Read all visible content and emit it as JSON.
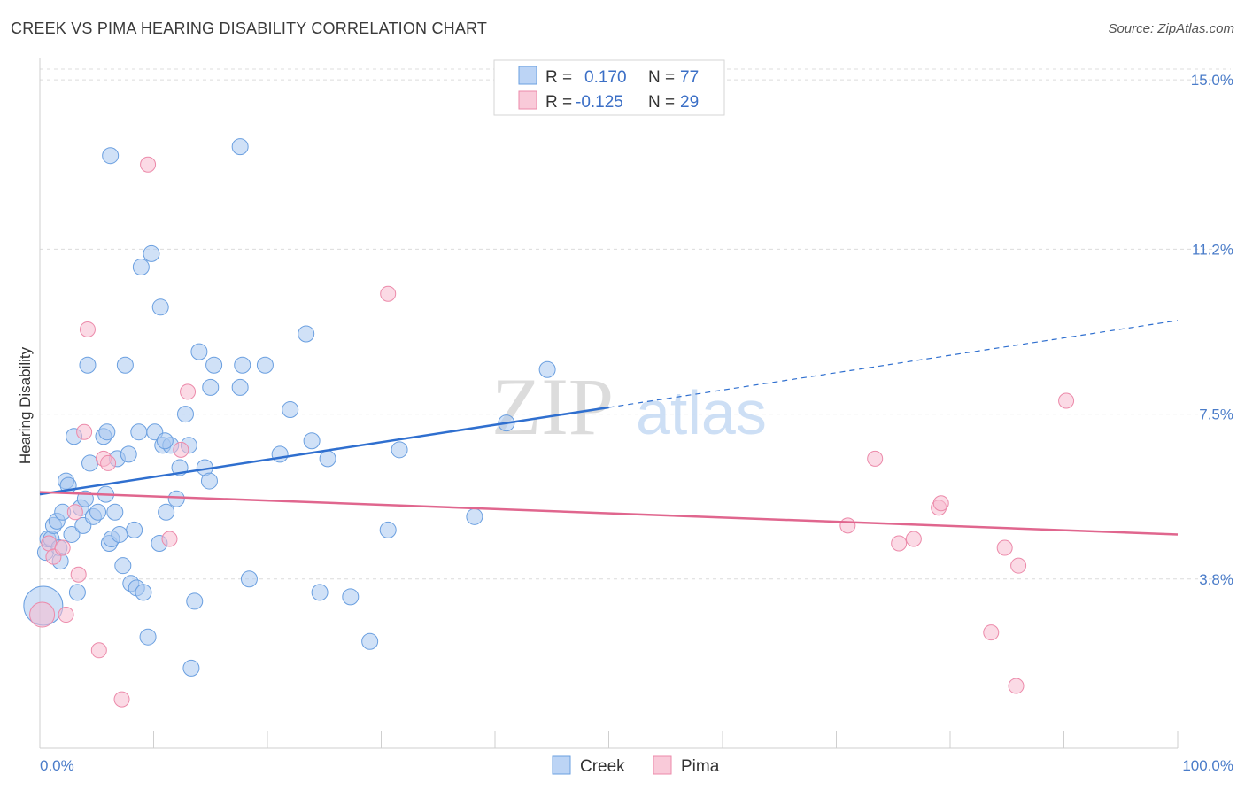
{
  "header": {
    "title": "CREEK VS PIMA HEARING DISABILITY CORRELATION CHART",
    "source": "Source: ZipAtlas.com"
  },
  "legend": {
    "r_label": "R =",
    "n_label": "N =",
    "creek": {
      "r": "0.170",
      "n": "77"
    },
    "pima": {
      "r": "-0.125",
      "n": "29"
    }
  },
  "watermark": {
    "zip": "ZIP",
    "atlas": "atlas"
  },
  "colors": {
    "creek_fill": "#a9c8f0",
    "creek_stroke": "#6a9fe0",
    "creek_line": "#2f6fcf",
    "pima_fill": "#f7bcd0",
    "pima_stroke": "#ec8aaa",
    "pima_line": "#e0668e"
  },
  "chart_data": {
    "type": "scatter",
    "title": "CREEK VS PIMA HEARING DISABILITY CORRELATION CHART",
    "xlabel": "",
    "ylabel": "Hearing Disability",
    "xlim": [
      0,
      100
    ],
    "ylim": [
      0,
      15.5
    ],
    "y_ticks": [
      3.8,
      7.5,
      11.2,
      15.0
    ],
    "y_tick_labels": [
      "3.8%",
      "7.5%",
      "11.2%",
      "15.0%"
    ],
    "x_tick_labels": [
      "0.0%",
      "100.0%"
    ],
    "grid": true,
    "legend_placement": "top-center",
    "series": [
      {
        "name": "Creek",
        "trend": {
          "x": [
            0,
            50
          ],
          "y": [
            5.7,
            7.65
          ],
          "dashed_to": [
            100,
            9.6
          ]
        },
        "points": [
          [
            0.3,
            3.2
          ],
          [
            0.5,
            4.4
          ],
          [
            0.7,
            4.7
          ],
          [
            1.0,
            4.7
          ],
          [
            1.2,
            5.0
          ],
          [
            1.5,
            5.1
          ],
          [
            1.7,
            4.5
          ],
          [
            1.8,
            4.2
          ],
          [
            2.0,
            5.3
          ],
          [
            2.3,
            6.0
          ],
          [
            2.5,
            5.9
          ],
          [
            2.8,
            4.8
          ],
          [
            3.0,
            7.0
          ],
          [
            3.3,
            3.5
          ],
          [
            3.6,
            5.4
          ],
          [
            3.8,
            5.0
          ],
          [
            4.0,
            5.6
          ],
          [
            4.2,
            8.6
          ],
          [
            4.4,
            6.4
          ],
          [
            4.7,
            5.2
          ],
          [
            5.1,
            5.3
          ],
          [
            5.6,
            7.0
          ],
          [
            5.8,
            5.7
          ],
          [
            5.9,
            7.1
          ],
          [
            6.1,
            4.6
          ],
          [
            6.3,
            4.7
          ],
          [
            6.6,
            5.3
          ],
          [
            6.8,
            6.5
          ],
          [
            7.0,
            4.8
          ],
          [
            7.3,
            4.1
          ],
          [
            7.5,
            8.6
          ],
          [
            7.8,
            6.6
          ],
          [
            8.0,
            3.7
          ],
          [
            8.3,
            4.9
          ],
          [
            8.5,
            3.6
          ],
          [
            8.7,
            7.1
          ],
          [
            8.9,
            10.8
          ],
          [
            9.1,
            3.5
          ],
          [
            9.5,
            2.5
          ],
          [
            9.8,
            11.1
          ],
          [
            10.1,
            7.1
          ],
          [
            10.5,
            4.6
          ],
          [
            10.6,
            9.9
          ],
          [
            10.8,
            6.8
          ],
          [
            11.1,
            5.3
          ],
          [
            11.5,
            6.8
          ],
          [
            12.0,
            5.6
          ],
          [
            12.3,
            6.3
          ],
          [
            12.8,
            7.5
          ],
          [
            13.1,
            6.8
          ],
          [
            13.3,
            1.8
          ],
          [
            13.6,
            3.3
          ],
          [
            14.0,
            8.9
          ],
          [
            14.5,
            6.3
          ],
          [
            14.9,
            6.0
          ],
          [
            15.0,
            8.1
          ],
          [
            15.3,
            8.6
          ],
          [
            6.2,
            13.3
          ],
          [
            17.6,
            8.1
          ],
          [
            17.8,
            8.6
          ],
          [
            18.4,
            3.8
          ],
          [
            19.8,
            8.6
          ],
          [
            21.1,
            6.6
          ],
          [
            22.0,
            7.6
          ],
          [
            23.4,
            9.3
          ],
          [
            23.9,
            6.9
          ],
          [
            24.6,
            3.5
          ],
          [
            25.3,
            6.5
          ],
          [
            27.3,
            3.4
          ],
          [
            29.0,
            2.4
          ],
          [
            30.6,
            4.9
          ],
          [
            31.6,
            6.7
          ],
          [
            38.2,
            5.2
          ],
          [
            41.0,
            7.3
          ],
          [
            44.6,
            8.5
          ],
          [
            17.6,
            13.5
          ],
          [
            11.0,
            6.9
          ]
        ]
      },
      {
        "name": "Pima",
        "trend": {
          "x": [
            0,
            100
          ],
          "y": [
            5.75,
            4.8
          ]
        },
        "points": [
          [
            0.2,
            3.0
          ],
          [
            0.8,
            4.6
          ],
          [
            1.2,
            4.3
          ],
          [
            2.0,
            4.5
          ],
          [
            2.3,
            3.0
          ],
          [
            3.1,
            5.3
          ],
          [
            3.4,
            3.9
          ],
          [
            3.9,
            7.1
          ],
          [
            4.2,
            9.4
          ],
          [
            5.2,
            2.2
          ],
          [
            5.6,
            6.5
          ],
          [
            6.0,
            6.4
          ],
          [
            7.2,
            1.1
          ],
          [
            9.5,
            13.1
          ],
          [
            11.4,
            4.7
          ],
          [
            12.4,
            6.7
          ],
          [
            13.0,
            8.0
          ],
          [
            30.6,
            10.2
          ],
          [
            71.0,
            5.0
          ],
          [
            73.4,
            6.5
          ],
          [
            75.5,
            4.6
          ],
          [
            76.8,
            4.7
          ],
          [
            79.0,
            5.4
          ],
          [
            79.2,
            5.5
          ],
          [
            83.6,
            2.6
          ],
          [
            84.8,
            4.5
          ],
          [
            85.8,
            1.4
          ],
          [
            86.0,
            4.1
          ],
          [
            90.2,
            7.8
          ]
        ]
      }
    ]
  }
}
